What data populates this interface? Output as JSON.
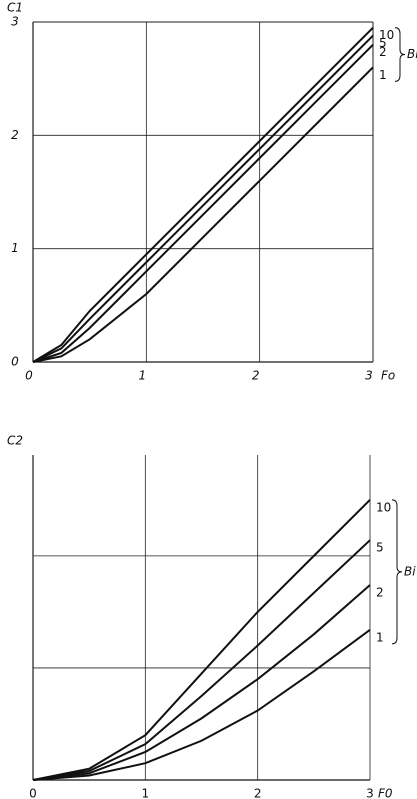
{
  "chart_data": [
    {
      "type": "line",
      "y_label": "C1",
      "x_label": "Fo",
      "annotation": "Bi",
      "x": [
        0,
        0.25,
        0.5,
        1,
        1.5,
        2,
        2.5,
        3
      ],
      "series": [
        {
          "name": "10",
          "color": "#111111",
          "values": [
            0,
            0.15,
            0.45,
            0.95,
            1.45,
            1.95,
            2.45,
            2.95
          ]
        },
        {
          "name": "5",
          "color": "#111111",
          "values": [
            0,
            0.12,
            0.38,
            0.88,
            1.38,
            1.88,
            2.38,
            2.88
          ]
        },
        {
          "name": "2",
          "color": "#111111",
          "values": [
            0,
            0.08,
            0.3,
            0.8,
            1.3,
            1.8,
            2.3,
            2.8
          ]
        },
        {
          "name": "1",
          "color": "#111111",
          "values": [
            0,
            0.05,
            0.2,
            0.6,
            1.1,
            1.6,
            2.1,
            2.6
          ]
        }
      ],
      "xlim": [
        0,
        3
      ],
      "ylim": [
        0,
        3
      ],
      "xticks": [
        0,
        1,
        2,
        3
      ],
      "yticks": [
        0,
        1,
        2,
        3
      ],
      "grid": true,
      "show_yticks": true
    },
    {
      "type": "line",
      "y_label": "C2",
      "x_label": "F0",
      "annotation": "Bi",
      "x": [
        0,
        0.5,
        1,
        1.5,
        2,
        2.5,
        3
      ],
      "series": [
        {
          "name": "10",
          "color": "#111111",
          "values": [
            0,
            0.1,
            0.4,
            0.95,
            1.5,
            2.0,
            2.5
          ]
        },
        {
          "name": "5",
          "color": "#111111",
          "values": [
            0,
            0.08,
            0.32,
            0.75,
            1.2,
            1.67,
            2.14
          ]
        },
        {
          "name": "2",
          "color": "#111111",
          "values": [
            0,
            0.06,
            0.25,
            0.55,
            0.9,
            1.3,
            1.74
          ]
        },
        {
          "name": "1",
          "color": "#111111",
          "values": [
            0,
            0.04,
            0.15,
            0.35,
            0.62,
            0.97,
            1.34
          ]
        }
      ],
      "xlim": [
        0,
        3
      ],
      "ylim": [
        0,
        2.9
      ],
      "xticks": [
        0,
        1,
        2,
        3
      ],
      "yticks": [
        1,
        2
      ],
      "grid": true,
      "show_yticks": false
    }
  ]
}
